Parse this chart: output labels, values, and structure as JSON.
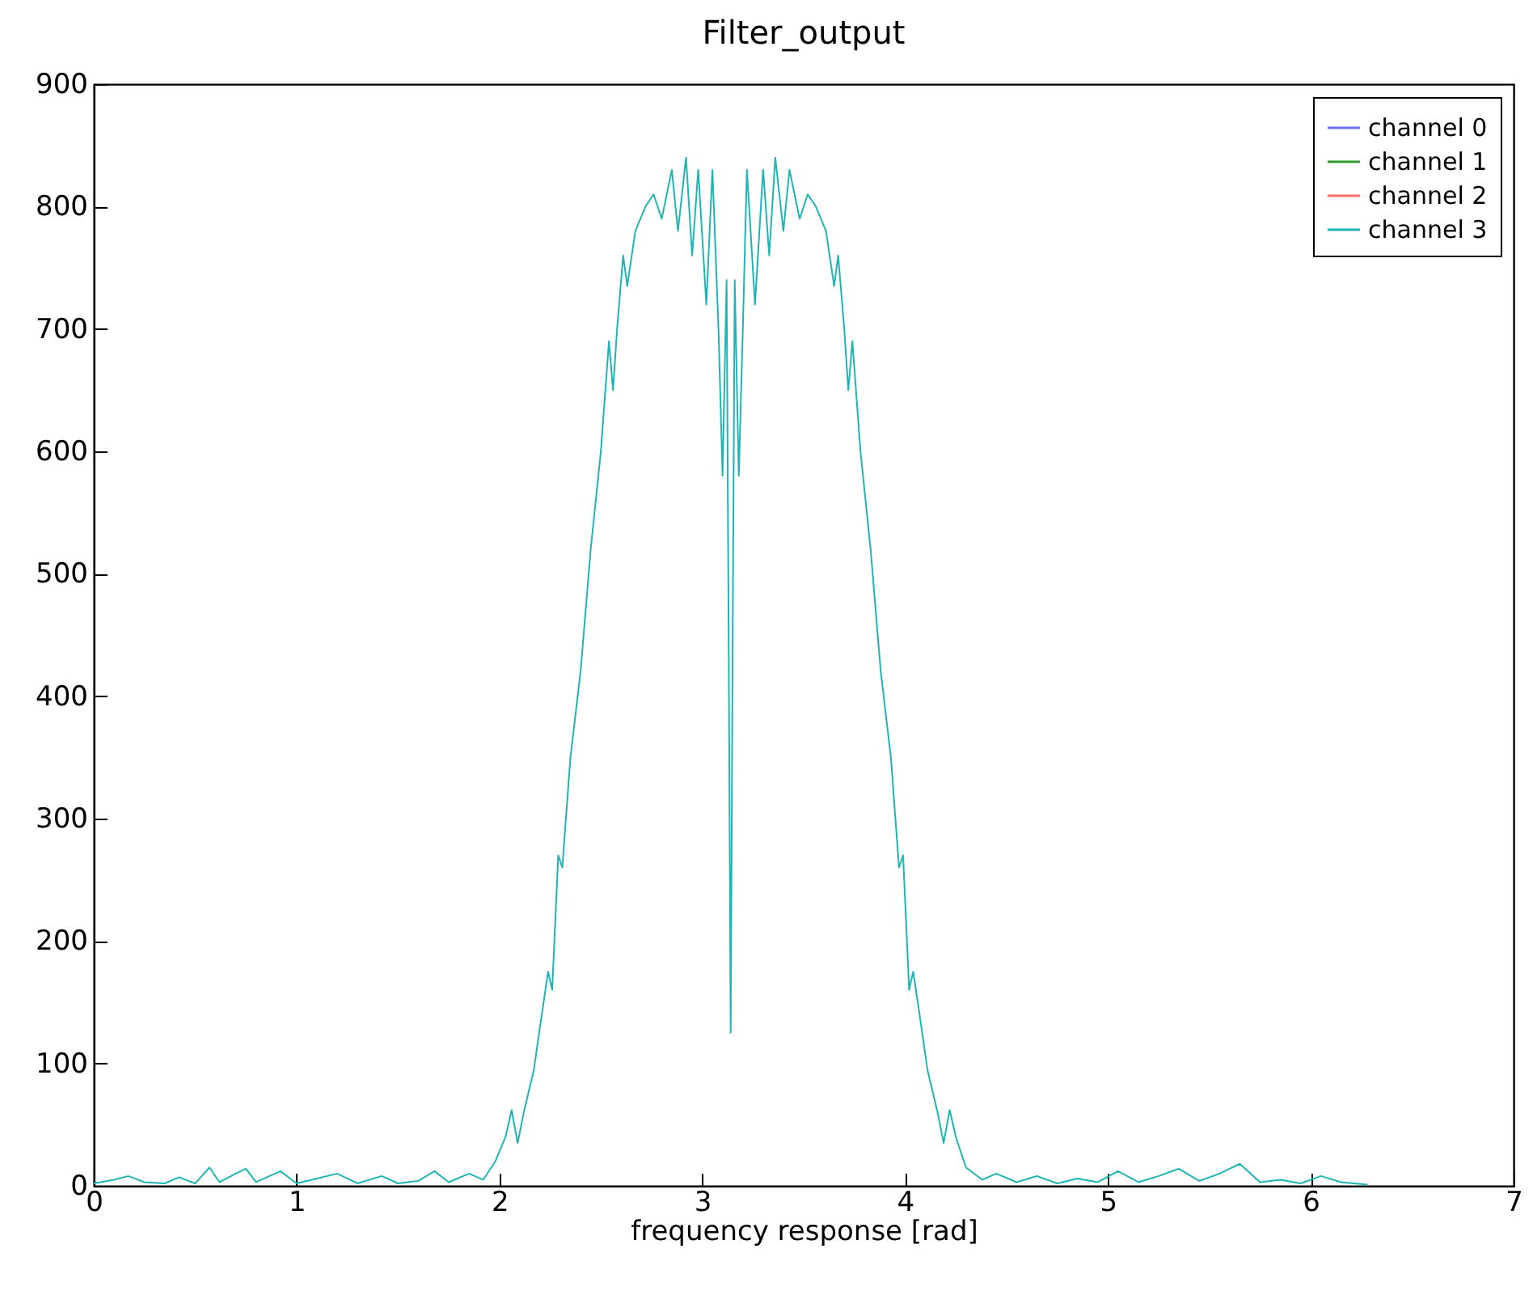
{
  "chart_data": {
    "type": "line",
    "title": "Filter_output",
    "xlabel": "frequency response [rad]",
    "xlim": [
      0,
      7
    ],
    "xticks": [
      0,
      1,
      2,
      3,
      4,
      5,
      6,
      7
    ],
    "ylim": [
      0,
      900
    ],
    "yticks": [
      0,
      100,
      200,
      300,
      400,
      500,
      600,
      700,
      800,
      900
    ],
    "grid": false,
    "legend": "top right",
    "marker": "none",
    "line_style": "solid",
    "x": [
      0,
      0.1,
      0.17,
      0.25,
      0.35,
      0.42,
      0.5,
      0.57,
      0.62,
      0.7,
      0.75,
      0.8,
      0.92,
      1.0,
      1.1,
      1.2,
      1.3,
      1.42,
      1.5,
      1.6,
      1.68,
      1.75,
      1.85,
      1.92,
      1.98,
      2.03,
      2.06,
      2.09,
      2.12,
      2.17,
      2.2,
      2.24,
      2.26,
      2.29,
      2.31,
      2.35,
      2.4,
      2.45,
      2.5,
      2.54,
      2.56,
      2.58,
      2.61,
      2.63,
      2.67,
      2.72,
      2.76,
      2.8,
      2.85,
      2.88,
      2.92,
      2.95,
      2.98,
      3.02,
      3.05,
      3.08,
      3.1,
      3.12,
      3.13,
      3.14,
      3.15,
      3.16,
      3.18,
      3.2,
      3.22,
      3.26,
      3.3,
      3.33,
      3.36,
      3.4,
      3.43,
      3.48,
      3.52,
      3.56,
      3.61,
      3.65,
      3.67,
      3.7,
      3.72,
      3.74,
      3.78,
      3.83,
      3.88,
      3.93,
      3.97,
      3.99,
      4.02,
      4.04,
      4.08,
      4.11,
      4.16,
      4.19,
      4.22,
      4.25,
      4.3,
      4.38,
      4.45,
      4.55,
      4.65,
      4.75,
      4.85,
      4.95,
      5.05,
      5.15,
      5.25,
      5.35,
      5.45,
      5.55,
      5.65,
      5.75,
      5.85,
      5.95,
      6.05,
      6.15,
      6.28
    ],
    "series": [
      {
        "name": "channel 0",
        "color": "#6f6fff",
        "values": [
          null,
          null,
          null,
          null,
          null,
          null,
          null,
          null,
          null,
          null,
          null,
          null,
          null,
          null,
          null,
          null,
          null,
          null,
          null,
          null,
          null,
          null,
          null,
          null,
          null,
          null,
          null,
          null,
          null,
          null,
          null,
          null,
          null,
          null,
          null,
          null,
          null,
          null,
          null,
          null,
          null,
          null,
          null,
          null,
          null,
          null,
          null,
          null,
          null,
          null,
          null,
          null,
          null,
          null,
          null,
          null,
          null,
          null,
          null,
          null,
          null,
          null,
          null,
          null,
          null,
          null,
          null,
          null,
          null,
          null,
          null,
          null,
          null,
          null,
          null,
          null,
          null,
          null,
          null,
          null,
          null,
          null,
          null,
          null,
          null,
          null,
          null,
          null,
          null,
          null,
          null,
          null,
          null,
          null,
          null,
          null,
          null,
          null,
          null,
          null,
          null,
          null,
          null,
          null,
          null,
          null,
          null,
          null,
          null,
          null,
          null,
          null,
          null,
          null,
          null
        ]
      },
      {
        "name": "channel 1",
        "color": "#2e9a2e",
        "values": [
          null,
          null,
          null,
          null,
          null,
          null,
          null,
          null,
          null,
          null,
          null,
          null,
          null,
          null,
          null,
          null,
          null,
          null,
          null,
          null,
          null,
          null,
          null,
          null,
          null,
          null,
          null,
          null,
          null,
          null,
          null,
          null,
          null,
          null,
          null,
          null,
          null,
          null,
          null,
          null,
          null,
          null,
          null,
          null,
          null,
          null,
          null,
          null,
          null,
          null,
          null,
          null,
          null,
          null,
          null,
          null,
          null,
          null,
          null,
          null,
          null,
          null,
          null,
          null,
          null,
          null,
          null,
          null,
          null,
          null,
          null,
          null,
          null,
          null,
          null,
          null,
          null,
          null,
          null,
          null,
          null,
          null,
          null,
          null,
          null,
          null,
          null,
          null,
          null,
          null,
          null,
          null,
          null,
          null,
          null,
          null,
          null,
          null,
          null,
          null,
          null,
          null,
          null,
          null,
          null,
          null,
          null,
          null,
          null,
          null,
          null,
          null,
          null,
          null,
          null
        ]
      },
      {
        "name": "channel 2",
        "color": "#ff6a6a",
        "values": [
          null,
          null,
          null,
          null,
          null,
          null,
          null,
          null,
          null,
          null,
          null,
          null,
          null,
          null,
          null,
          null,
          null,
          null,
          null,
          null,
          null,
          null,
          null,
          null,
          null,
          null,
          null,
          null,
          null,
          null,
          null,
          null,
          null,
          null,
          null,
          null,
          null,
          null,
          null,
          null,
          null,
          null,
          null,
          null,
          null,
          null,
          null,
          null,
          null,
          null,
          null,
          null,
          null,
          null,
          null,
          null,
          null,
          null,
          null,
          null,
          null,
          null,
          null,
          null,
          null,
          null,
          null,
          null,
          null,
          null,
          null,
          null,
          null,
          null,
          null,
          null,
          null,
          null,
          null,
          null,
          null,
          null,
          null,
          null,
          null,
          null,
          null,
          null,
          null,
          null,
          null,
          null,
          null,
          null,
          null,
          null,
          null,
          null,
          null,
          null,
          null,
          null,
          null,
          null,
          null,
          null,
          null,
          null,
          null,
          null,
          null,
          null,
          null,
          null,
          null
        ]
      },
      {
        "name": "channel 3",
        "color": "#1fb5b5",
        "values": [
          2,
          5,
          8,
          3,
          2,
          7,
          2,
          15,
          3,
          10,
          14,
          3,
          12,
          2,
          6,
          10,
          2,
          8,
          2,
          4,
          12,
          3,
          10,
          5,
          20,
          40,
          62,
          35,
          60,
          95,
          130,
          175,
          160,
          270,
          260,
          350,
          420,
          520,
          600,
          690,
          650,
          700,
          760,
          735,
          780,
          800,
          810,
          790,
          830,
          780,
          840,
          760,
          830,
          720,
          830,
          700,
          580,
          740,
          450,
          125,
          450,
          740,
          580,
          700,
          830,
          720,
          830,
          760,
          840,
          780,
          830,
          790,
          810,
          800,
          780,
          735,
          760,
          700,
          650,
          690,
          600,
          520,
          420,
          350,
          260,
          270,
          160,
          175,
          130,
          95,
          60,
          35,
          62,
          40,
          15,
          5,
          10,
          3,
          8,
          2,
          6,
          3,
          12,
          3,
          8,
          14,
          4,
          10,
          18,
          3,
          5,
          2,
          8,
          3,
          1
        ]
      }
    ]
  }
}
